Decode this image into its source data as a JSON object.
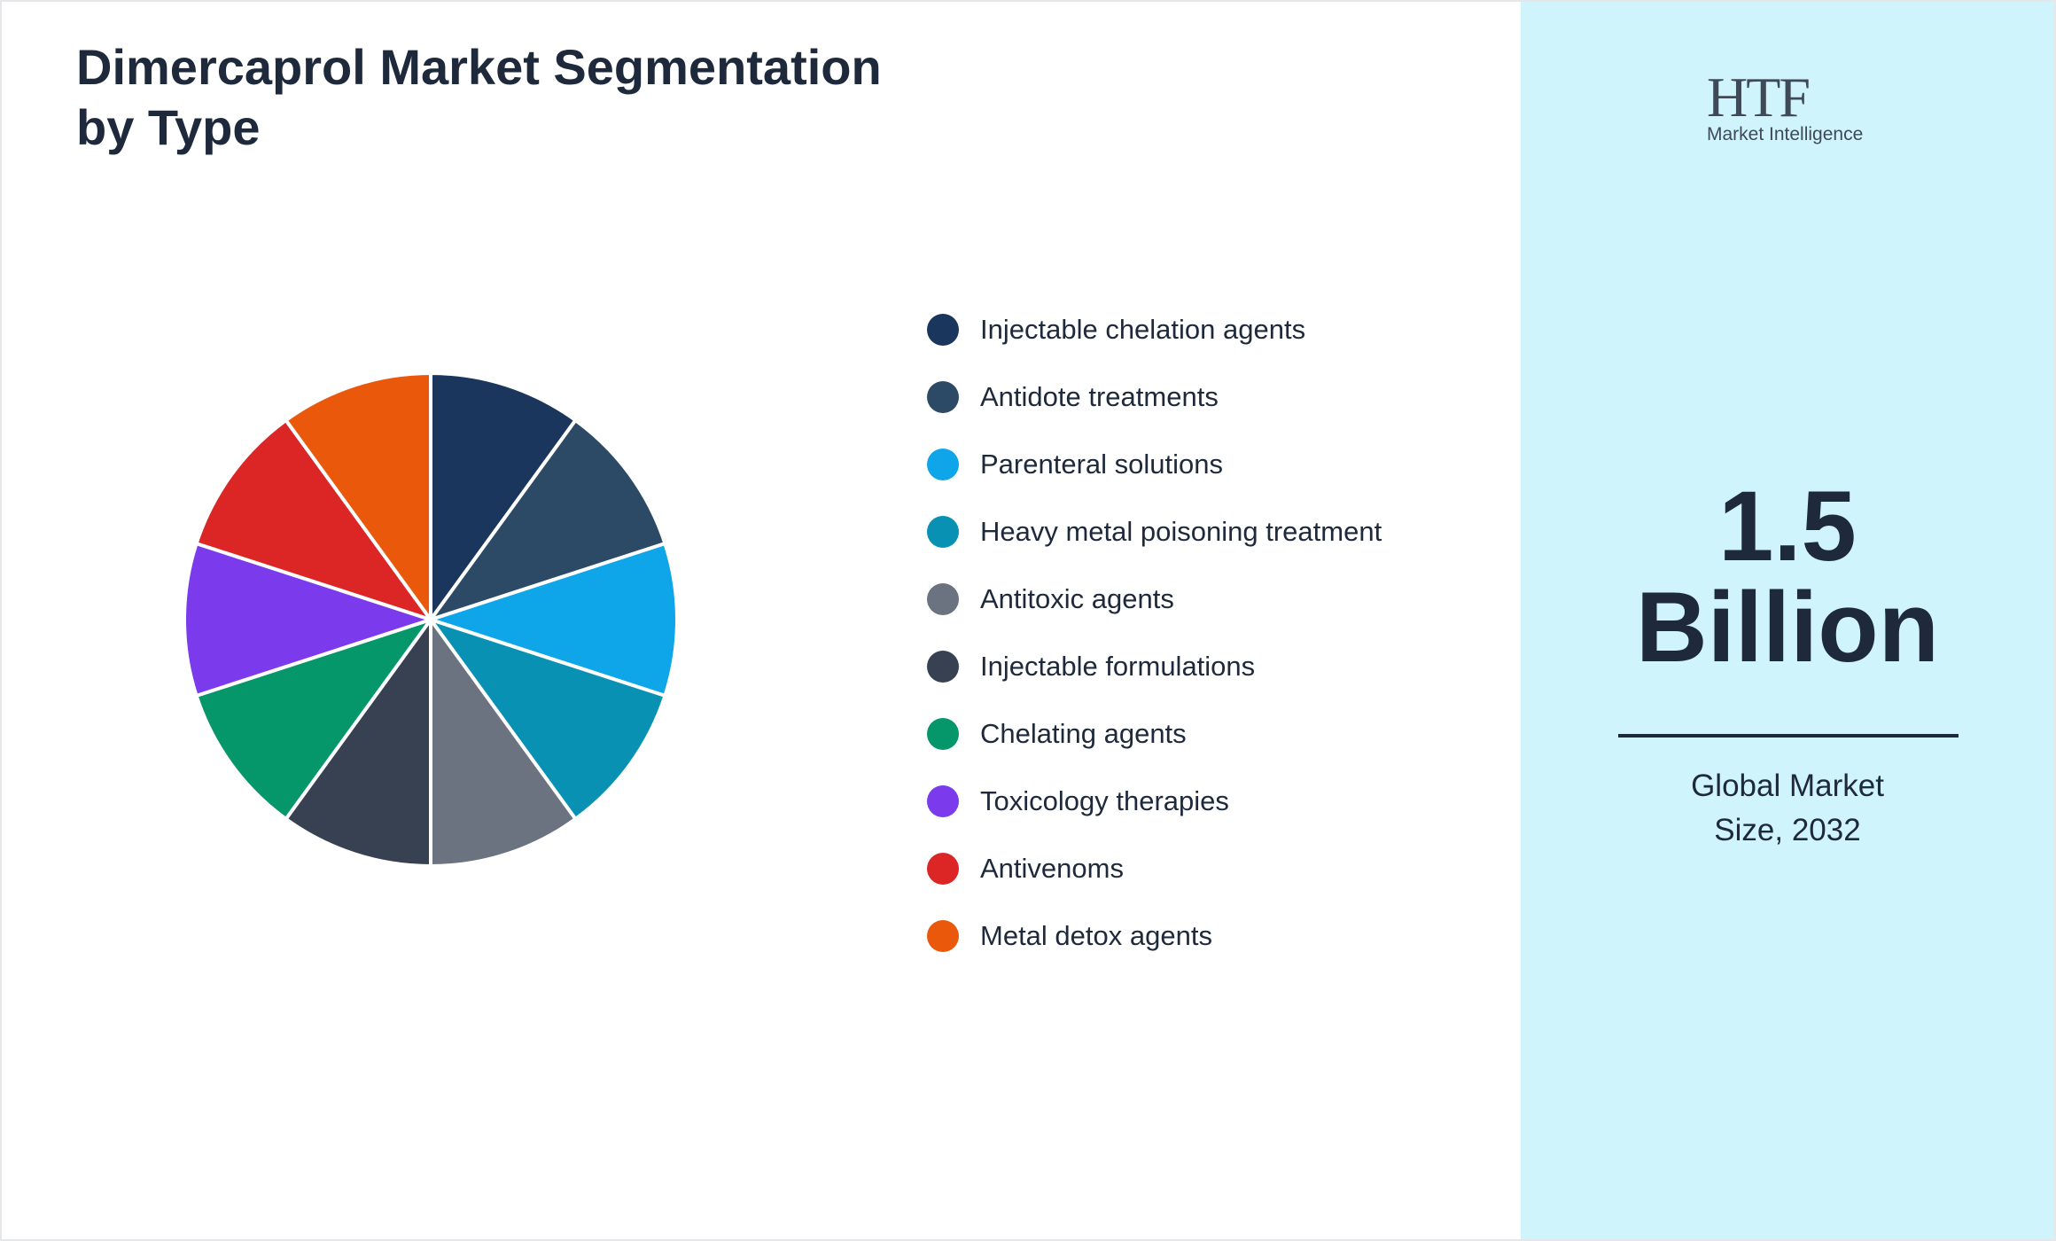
{
  "chart_data": {
    "type": "pie",
    "title": "Dimercaprol Market Segmentation by Type",
    "categories": [
      "Injectable chelation agents",
      "Antidote treatments",
      "Parenteral solutions",
      "Heavy metal poisoning treatment",
      "Antitoxic agents",
      "Injectable formulations",
      "Chelating agents",
      "Toxicology therapies",
      "Antivenoms",
      "Metal detox agents"
    ],
    "values": [
      10,
      10,
      10,
      10,
      10,
      10,
      10,
      10,
      10,
      10
    ],
    "colors": [
      "#1b365d",
      "#2c4a66",
      "#0ea5e9",
      "#0891b2",
      "#6b7280",
      "#374151",
      "#059669",
      "#7c3aed",
      "#dc2626",
      "#ea580c"
    ]
  },
  "sidebar": {
    "logo_mark": "HTF",
    "logo_text": "Market Intelligence",
    "value": 1.5,
    "unit": "Billion",
    "caption": "Global Market Size, 2032"
  }
}
